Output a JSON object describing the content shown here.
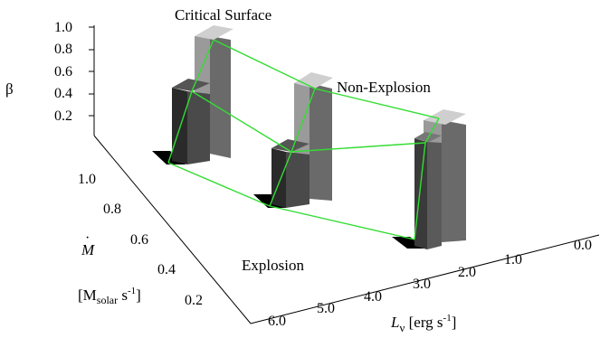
{
  "chart_data": {
    "type": "3d-bar",
    "y_axis_label": "β",
    "y_ticks": [
      "1.0",
      "0.8",
      "0.6",
      "0.4",
      "0.2"
    ],
    "mdot_axis": {
      "symbol": "M",
      "unit_pre": "[M",
      "unit_sub": "solar",
      "unit_post": " s",
      "unit_sup": "-1",
      "unit_close": "]"
    },
    "mdot_ticks": [
      "1.0",
      "0.8",
      "0.6",
      "0.4",
      "0.2"
    ],
    "lnu_axis": {
      "symbol": "L",
      "sub": "ν",
      "unit": " [erg s",
      "unit_sup": "-1",
      "unit_close": "]"
    },
    "lnu_ticks": [
      "6.0",
      "5.0",
      "4.0",
      "3.0",
      "2.0",
      "1.0",
      "0.0"
    ],
    "annotations": {
      "critical": "Critical Surface",
      "non_explosion": "Non-Explosion",
      "explosion": "Explosion"
    },
    "colors": {
      "critical": "#22dd22",
      "non_explosion": "#1010cc",
      "explosion": "#dd1010",
      "surface": "#33dd33"
    }
  }
}
